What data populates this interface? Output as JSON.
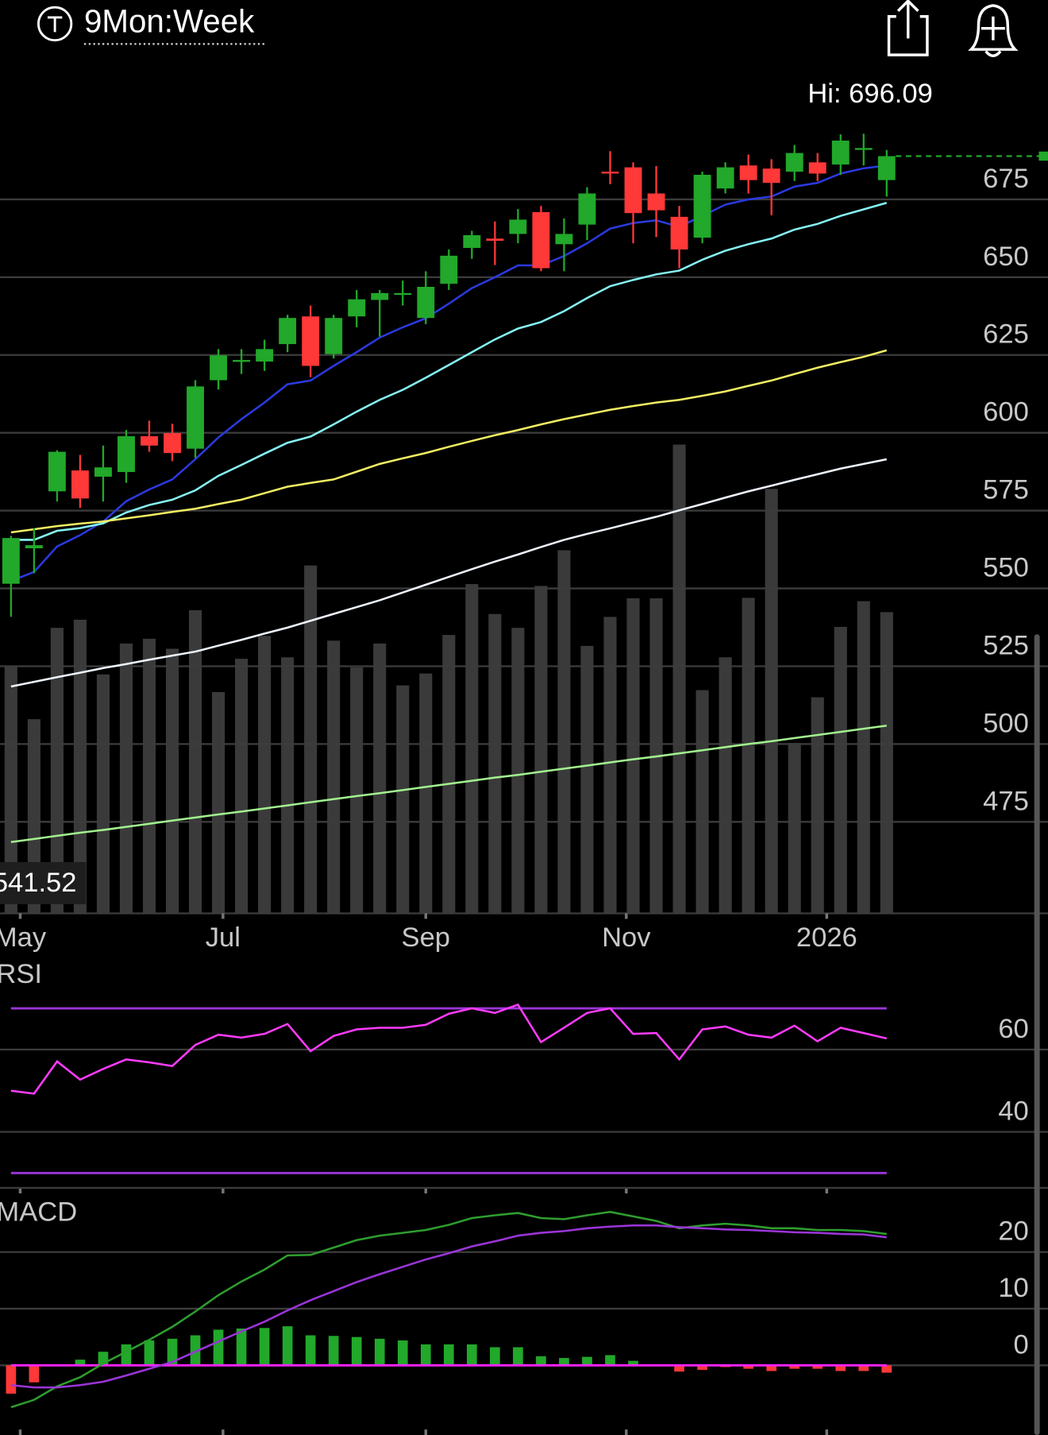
{
  "header": {
    "ticker": "9Mon:Week"
  },
  "chart_data": [
    {
      "type": "candlestick",
      "title": "Hi: 696.09",
      "crosshair_label": "541.52",
      "open": [
        551.5,
        562.9,
        581.2,
        587.9,
        585.9,
        587.4,
        598.9,
        599.9,
        594.9,
        616.9,
        622.9,
        622.9,
        628.5,
        637.4,
        625.3,
        637.4,
        642.7,
        644.4,
        636.9,
        647.9,
        659.4,
        662.4,
        663.9,
        670.9,
        660.6,
        666.9,
        683.9,
        685.3,
        676.9,
        669.4,
        662.7,
        678.5,
        685.9,
        684.9,
        683.9,
        686.9,
        686.2,
        690.9,
        681.2
      ],
      "high": [
        566.9,
        569.4,
        594.4,
        592.9,
        595.9,
        600.9,
        603.9,
        602.9,
        616.9,
        626.9,
        626.9,
        629.9,
        637.9,
        640.9,
        637.9,
        645.9,
        645.9,
        648.9,
        651.9,
        658.9,
        664.9,
        667.9,
        671.9,
        672.9,
        668.9,
        678.9,
        690.5,
        686.9,
        685.7,
        672.9,
        683.9,
        686.9,
        689.4,
        687.9,
        692.5,
        689.9,
        695.9,
        696.09,
        690.9
      ],
      "low": [
        540.9,
        554.9,
        577.9,
        575.9,
        577.9,
        583.9,
        593.9,
        590.9,
        591.9,
        613.9,
        618.9,
        619.9,
        625.9,
        617.9,
        623.9,
        633.9,
        630.9,
        640.9,
        634.9,
        645.9,
        655.9,
        653.9,
        660.9,
        651.9,
        651.9,
        661.9,
        679.9,
        660.9,
        662.9,
        652.9,
        660.9,
        676.9,
        676.9,
        669.9,
        680.9,
        680.9,
        682.9,
        685.9,
        675.9
      ],
      "close": [
        566.2,
        563.9,
        593.9,
        578.9,
        588.9,
        598.9,
        595.9,
        593.5,
        614.9,
        624.9,
        623.4,
        626.9,
        636.9,
        621.5,
        636.9,
        642.9,
        644.9,
        644.9,
        646.9,
        656.9,
        663.5,
        661.7,
        668.5,
        652.9,
        663.9,
        676.9,
        683.4,
        670.6,
        671.5,
        658.9,
        682.9,
        685.3,
        681.2,
        680.3,
        689.9,
        683.3,
        693.9,
        691.5,
        688.9
      ],
      "up_color": "#22a82a",
      "down_color": "#ff3838",
      "overlays": [
        {
          "color": "#2a3ae0",
          "values": [
            552.4,
            555.3,
            563.5,
            567.1,
            571.5,
            578,
            581.8,
            585,
            591.5,
            598.5,
            604.4,
            609.7,
            615.6,
            616.8,
            621.5,
            625.9,
            630.6,
            633.9,
            636.8,
            641.5,
            646.5,
            650,
            653.8,
            653.8,
            656.8,
            660.9,
            665.6,
            667.4,
            668.3,
            666.2,
            669.7,
            673.3,
            675,
            675.9,
            679.1,
            680.3,
            683.3,
            685,
            685.9
          ]
        },
        {
          "color": "#86f5f5",
          "values": [
            565.6,
            565.6,
            568.5,
            569.4,
            570.9,
            574.4,
            576.8,
            578.5,
            581.5,
            586.2,
            589.7,
            593.3,
            596.8,
            598.8,
            602.7,
            606.8,
            610.6,
            613.8,
            617.7,
            621.8,
            625.9,
            630,
            633.5,
            635.6,
            639.1,
            643.3,
            647.1,
            649.1,
            650.9,
            652.1,
            655.6,
            658.5,
            660.6,
            662.4,
            665.3,
            667.1,
            669.7,
            671.8,
            673.9
          ]
        },
        {
          "color": "#f3ee63",
          "values": [
            568,
            569,
            570,
            570.8,
            571.5,
            572.5,
            573.5,
            574.6,
            575.6,
            577.1,
            578.5,
            580.6,
            582.7,
            583.9,
            585,
            587.5,
            590,
            591.8,
            593.5,
            595.5,
            597.4,
            599.2,
            600.9,
            602.7,
            604.4,
            605.9,
            607.4,
            608.6,
            609.7,
            610.6,
            611.9,
            613.3,
            615.1,
            616.8,
            618.9,
            620.9,
            622.7,
            624.4,
            626.5
          ]
        },
        {
          "color": "#eef4ff",
          "values": [
            518.5,
            520,
            521.5,
            522.9,
            524.4,
            525.7,
            527.1,
            528.4,
            529.7,
            531.6,
            533.5,
            535.5,
            537.4,
            539.6,
            541.8,
            544,
            546.2,
            548.7,
            551.2,
            553.7,
            556.2,
            558.6,
            560.9,
            563.3,
            565.6,
            567.5,
            569.3,
            571.2,
            573,
            575.1,
            577.1,
            579.2,
            581.2,
            583,
            584.9,
            586.7,
            588.5,
            590,
            591.5
          ]
        },
        {
          "color": "#a2f28e",
          "values": [
            468.5,
            469.5,
            470.5,
            471.5,
            472.4,
            473.4,
            474.4,
            475.4,
            476.4,
            477.4,
            478.3,
            479.3,
            480.3,
            481.3,
            482.3,
            483.3,
            484.2,
            485.2,
            486.2,
            487.2,
            488.2,
            489.2,
            490.1,
            491.1,
            492.1,
            493.1,
            494.1,
            495.1,
            496,
            497,
            498,
            499,
            500,
            500.9,
            501.9,
            502.9,
            503.9,
            504.9,
            505.9
          ]
        }
      ],
      "volume": [
        51.9,
        40.8,
        60,
        61.7,
        50.2,
        56.7,
        57.7,
        55.6,
        63.7,
        46.5,
        53.5,
        58.3,
        53.8,
        73.1,
        57.3,
        51.7,
        56.7,
        47.9,
        50.4,
        58.5,
        69.2,
        62.9,
        60,
        68.8,
        76.3,
        56.2,
        62.3,
        66.2,
        66.2,
        98.5,
        46.9,
        53.8,
        66.3,
        89.2,
        35.8,
        45.4,
        60.2,
        65.6,
        63.3
      ],
      "volume_lim": [
        0,
        100
      ],
      "volume_color": "#3a3a3a",
      "ylim": [
        445.6,
        712.6
      ],
      "yticks": [
        475,
        500,
        525,
        550,
        575,
        600,
        625,
        650,
        675
      ],
      "grid": true,
      "xticks": [
        {
          "value": 0.4,
          "label": "May"
        },
        {
          "value": 9.2,
          "label": "Jul"
        },
        {
          "value": 18,
          "label": "Sep"
        },
        {
          "value": 26.7,
          "label": "Nov"
        },
        {
          "value": 35.4,
          "label": "2026"
        }
      ]
    },
    {
      "type": "line",
      "title": "RSI",
      "series": [
        {
          "color": "#ff3cff",
          "values": [
            50,
            49.3,
            57.1,
            52.7,
            55.3,
            57.6,
            56.9,
            56,
            61.1,
            63.6,
            62.9,
            63.8,
            66.2,
            59.6,
            63.3,
            64.9,
            65.3,
            65.3,
            66,
            68.7,
            70,
            68.9,
            70.9,
            61.8,
            65.3,
            68.9,
            70,
            63.8,
            64,
            57.6,
            64.9,
            65.6,
            63.6,
            62.9,
            65.8,
            62,
            65.3,
            64,
            62.7
          ]
        }
      ],
      "reference_lines": [
        70,
        30
      ],
      "reference_color": "#9b35d8",
      "ylim": [
        26.4,
        80.4
      ],
      "yticks": [
        40,
        60
      ],
      "grid": true
    },
    {
      "type": "macd",
      "title": "MACD",
      "series": [
        {
          "color": "#2e9e2e",
          "values": [
            -7.4,
            -6.1,
            -3.7,
            -2.1,
            0.3,
            2.4,
            4.5,
            6.8,
            9.5,
            12.4,
            14.8,
            16.9,
            19.4,
            19.5,
            20.8,
            22.1,
            22.9,
            23.4,
            23.9,
            24.8,
            26,
            26.5,
            26.9,
            26,
            25.8,
            26.5,
            27.1,
            26.3,
            25.5,
            24.2,
            24.7,
            25,
            24.7,
            24.2,
            24.2,
            23.9,
            23.9,
            23.7,
            23.2
          ]
        },
        {
          "color": "#9b35d8",
          "values": [
            -3.5,
            -3.9,
            -3.9,
            -3.5,
            -2.9,
            -1.8,
            -0.6,
            0.6,
            2.4,
            4.2,
            6,
            7.7,
            9.7,
            11.5,
            13.1,
            14.7,
            16.1,
            17.4,
            18.7,
            19.8,
            21,
            21.9,
            22.9,
            23.4,
            23.7,
            24.2,
            24.5,
            24.7,
            24.7,
            24.4,
            24.2,
            24,
            23.9,
            23.7,
            23.5,
            23.4,
            23.2,
            23.1,
            22.6
          ]
        }
      ],
      "histogram": [
        -5,
        -3,
        0,
        1,
        2.4,
        3.7,
        4.4,
        4.7,
        5.3,
        6.3,
        6.5,
        6.6,
        6.9,
        5.3,
        5.2,
        5,
        4.7,
        4.4,
        3.7,
        3.7,
        3.7,
        3.2,
        3.2,
        1.6,
        1.3,
        1.5,
        1.8,
        0.8,
        0,
        -1.1,
        -0.8,
        -0.3,
        -0.6,
        -1,
        -0.6,
        -0.6,
        -1,
        -1,
        -1.3
      ],
      "hist_up_color": "#22a82a",
      "hist_down_color": "#ff3838",
      "zero_color": "#ff22ff",
      "ylim": [
        -12.3,
        30.2
      ],
      "yticks": [
        0,
        10,
        20
      ],
      "grid": true
    }
  ]
}
